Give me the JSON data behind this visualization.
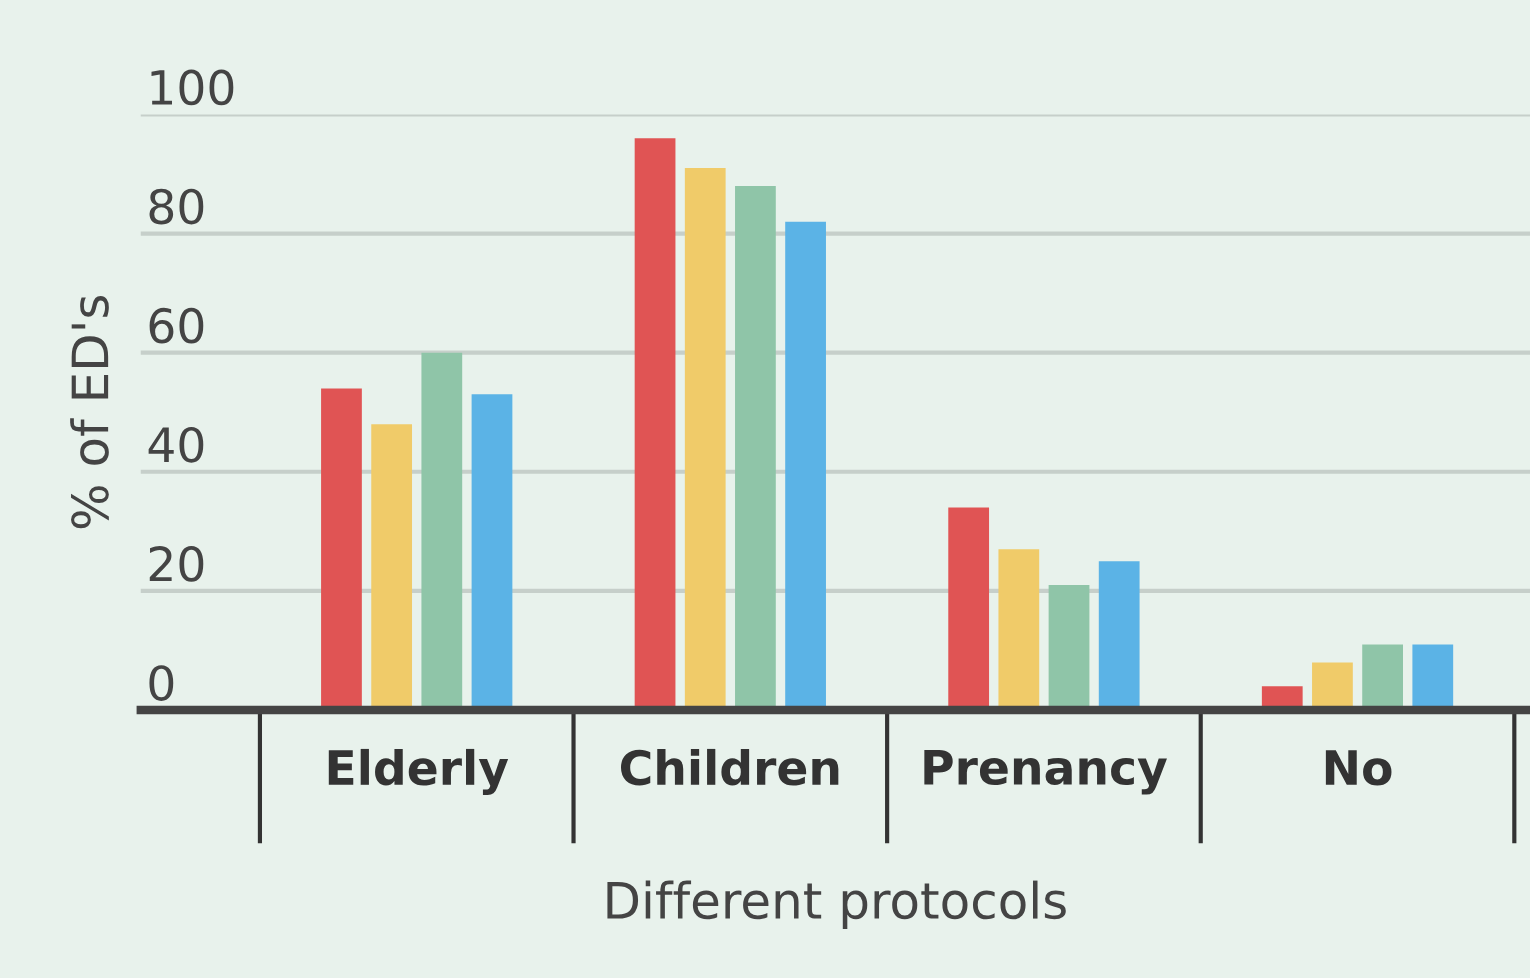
{
  "chart_data": {
    "type": "bar",
    "xlabel": "Different protocols",
    "ylabel": "% of ED's",
    "categories": [
      "Elderly",
      "Children",
      "Prenancy",
      "No"
    ],
    "series": [
      {
        "color": "#e05454",
        "values": [
          54,
          96,
          34,
          4
        ]
      },
      {
        "color": "#f0cb69",
        "values": [
          48,
          91,
          27,
          8
        ]
      },
      {
        "color": "#8fc5a8",
        "values": [
          60,
          88,
          21,
          11
        ]
      },
      {
        "color": "#5bb3e6",
        "values": [
          53,
          82,
          25,
          11
        ]
      }
    ],
    "ylim": [
      0,
      100
    ],
    "yticks": [
      0,
      20,
      40,
      60,
      80,
      100
    ],
    "grid": "y",
    "legend": false
  }
}
